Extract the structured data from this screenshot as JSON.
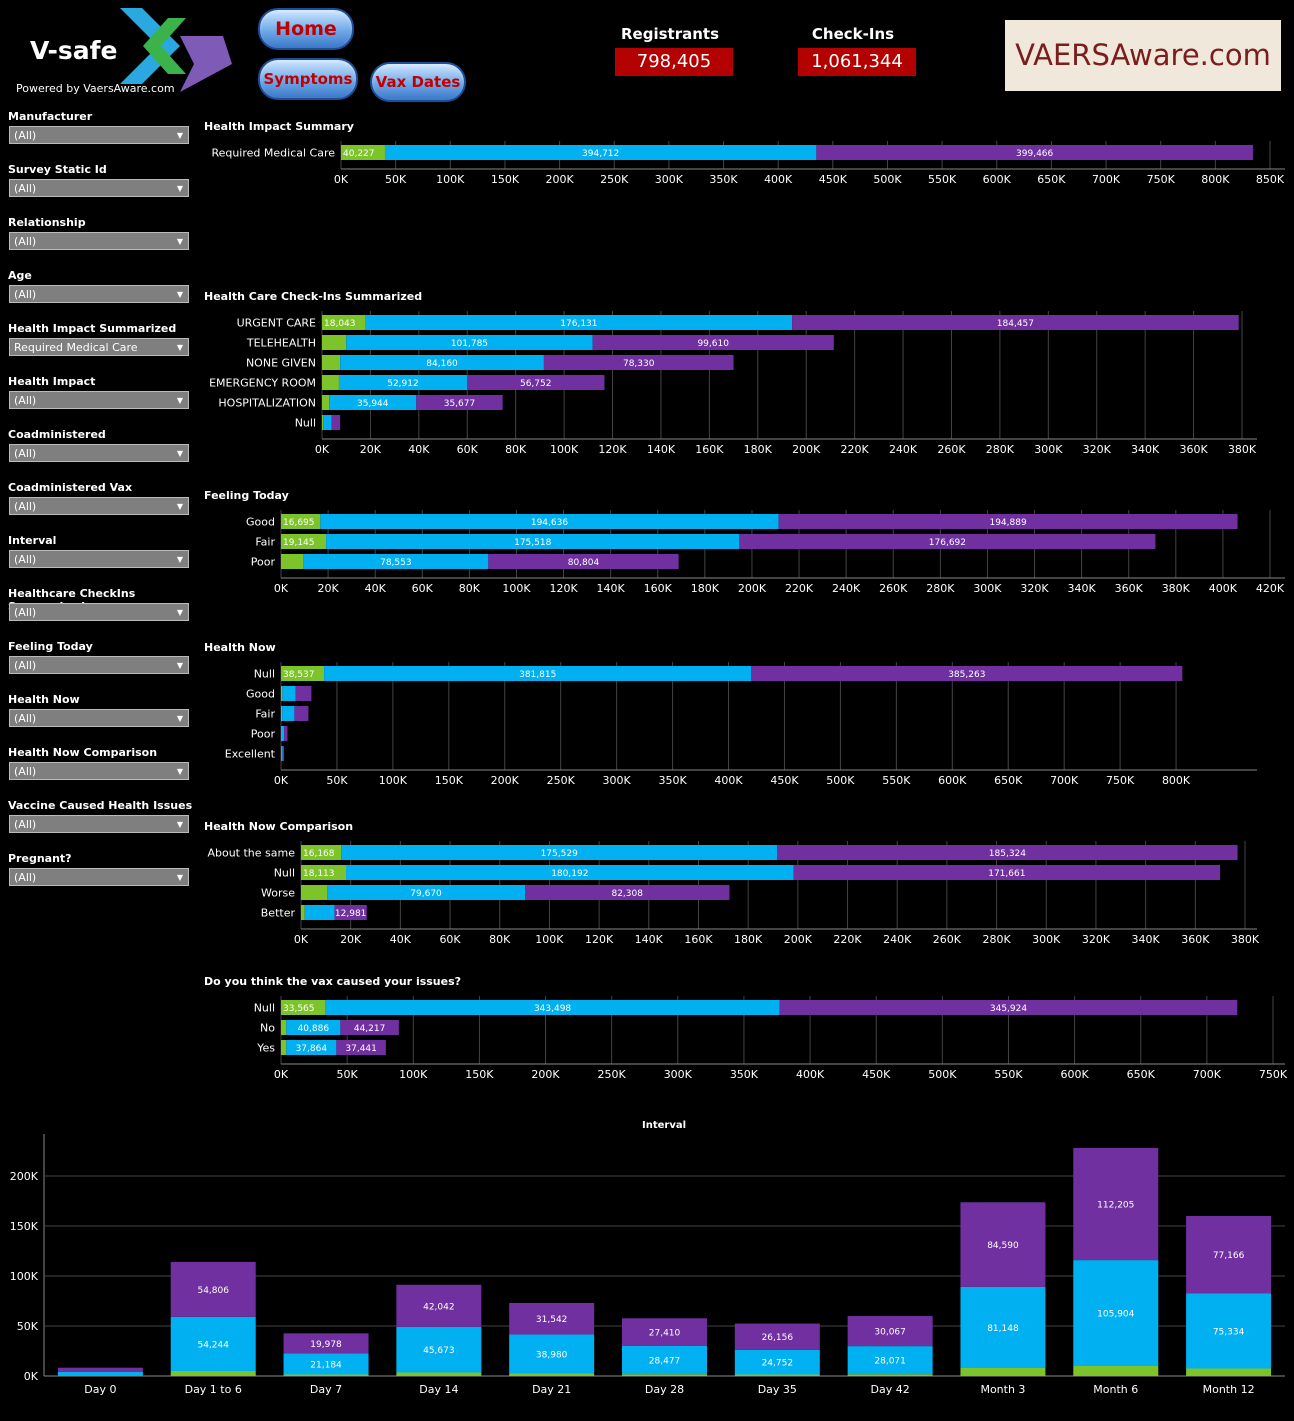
{
  "header": {
    "logo_title": "V-safe",
    "logo_sub": "Powered by VaersAware.com",
    "nav": {
      "home": "Home",
      "symptoms": "Symptoms",
      "vax_dates": "Vax Dates"
    },
    "stats": [
      {
        "label": "Registrants",
        "value": "798,405"
      },
      {
        "label": "Check-Ins",
        "value": "1,061,344"
      }
    ],
    "brand": "VAERSAware.com"
  },
  "filters": [
    {
      "label": "Manufacturer",
      "value": "(All)"
    },
    {
      "label": "Survey Static Id",
      "value": "(All)"
    },
    {
      "label": "Relationship",
      "value": "(All)"
    },
    {
      "label": "Age",
      "value": "(All)"
    },
    {
      "label": "Health Impact Summarized",
      "value": "Required Medical Care"
    },
    {
      "label": "Health Impact",
      "value": "(All)"
    },
    {
      "label": "Coadministered",
      "value": "(All)"
    },
    {
      "label": "Coadministered Vax",
      "value": "(All)"
    },
    {
      "label": "Interval",
      "value": "(All)"
    },
    {
      "label": "Healthcare CheckIns Summarized",
      "value": "(All)"
    },
    {
      "label": "Feeling Today",
      "value": "(All)"
    },
    {
      "label": "Health Now",
      "value": "(All)"
    },
    {
      "label": "Health Now Comparison",
      "value": "(All)"
    },
    {
      "label": "Vaccine Caused Health Issues",
      "value": "(All)"
    },
    {
      "label": "Pregnant?",
      "value": "(All)"
    }
  ],
  "colors": {
    "green": "#7dc32a",
    "blue": "#00b0f0",
    "purple": "#7030a0",
    "grid": "#444444",
    "axis": "#888888"
  },
  "chart_data": [
    {
      "type": "bar",
      "orientation": "horizontal",
      "stacked": true,
      "title": "Health Impact Summary",
      "categories": [
        "Required Medical Care"
      ],
      "series": [
        {
          "values": [
            40227
          ]
        },
        {
          "values": [
            394712
          ]
        },
        {
          "values": [
            399466
          ]
        }
      ],
      "labels": [
        [
          "40,227"
        ],
        [
          "394,712"
        ],
        [
          "399,466"
        ]
      ],
      "xticks": [
        "0K",
        "50K",
        "100K",
        "150K",
        "200K",
        "250K",
        "300K",
        "350K",
        "400K",
        "450K",
        "500K",
        "550K",
        "600K",
        "650K",
        "700K",
        "750K",
        "800K",
        "850K"
      ],
      "xlim": [
        0,
        850000
      ]
    },
    {
      "type": "bar",
      "orientation": "horizontal",
      "stacked": true,
      "title": "Health Care Check-Ins Summarized",
      "categories": [
        "URGENT CARE",
        "TELEHEALTH",
        "NONE GIVEN",
        "EMERGENCY ROOM",
        "HOSPITALIZATION",
        "Null"
      ],
      "series": [
        {
          "values": [
            18043,
            10000,
            7500,
            7000,
            3000,
            500
          ]
        },
        {
          "values": [
            176131,
            101785,
            84160,
            52912,
            35944,
            3500
          ]
        },
        {
          "values": [
            184457,
            99610,
            78330,
            56752,
            35677,
            3500
          ]
        }
      ],
      "labels": [
        [
          "18,043",
          "",
          "",
          "",
          "",
          ""
        ],
        [
          "176,131",
          "101,785",
          "84,160",
          "52,912",
          "35,944",
          ""
        ],
        [
          "184,457",
          "99,610",
          "78,330",
          "56,752",
          "35,677",
          ""
        ]
      ],
      "xticks": [
        "0K",
        "20K",
        "40K",
        "60K",
        "80K",
        "100K",
        "120K",
        "140K",
        "160K",
        "180K",
        "200K",
        "220K",
        "240K",
        "260K",
        "280K",
        "300K",
        "320K",
        "340K",
        "360K",
        "380K"
      ],
      "xlim": [
        0,
        380000
      ]
    },
    {
      "type": "bar",
      "orientation": "horizontal",
      "stacked": true,
      "title": "Feeling Today",
      "categories": [
        "Good",
        "Fair",
        "Poor"
      ],
      "series": [
        {
          "values": [
            16695,
            19145,
            9500
          ]
        },
        {
          "values": [
            194636,
            175518,
            78553
          ]
        },
        {
          "values": [
            194889,
            176692,
            80804
          ]
        }
      ],
      "labels": [
        [
          "16,695",
          "19,145",
          ""
        ],
        [
          "194,636",
          "175,518",
          "78,553"
        ],
        [
          "194,889",
          "176,692",
          "80,804"
        ]
      ],
      "xticks": [
        "0K",
        "20K",
        "40K",
        "60K",
        "80K",
        "100K",
        "120K",
        "140K",
        "160K",
        "180K",
        "200K",
        "220K",
        "240K",
        "260K",
        "280K",
        "300K",
        "320K",
        "340K",
        "360K",
        "380K",
        "400K",
        "420K"
      ],
      "xlim": [
        0,
        420000
      ]
    },
    {
      "type": "bar",
      "orientation": "horizontal",
      "stacked": true,
      "title": "Health Now",
      "categories": [
        "Null",
        "Good",
        "Fair",
        "Poor",
        "Excellent"
      ],
      "series": [
        {
          "values": [
            38537,
            1200,
            1000,
            300,
            200
          ]
        },
        {
          "values": [
            381815,
            12000,
            11000,
            2500,
            1200
          ]
        },
        {
          "values": [
            385263,
            14000,
            12500,
            3000,
            1300
          ]
        }
      ],
      "labels": [
        [
          "38,537",
          "",
          "",
          "",
          ""
        ],
        [
          "381,815",
          "",
          "",
          "",
          ""
        ],
        [
          "385,263",
          "",
          "",
          "",
          ""
        ]
      ],
      "xticks": [
        "0K",
        "50K",
        "100K",
        "150K",
        "200K",
        "250K",
        "300K",
        "350K",
        "400K",
        "450K",
        "500K",
        "550K",
        "600K",
        "650K",
        "700K",
        "750K",
        "800K"
      ],
      "xlim": [
        0,
        850000
      ]
    },
    {
      "type": "bar",
      "orientation": "horizontal",
      "stacked": true,
      "title": "Health Now Comparison",
      "categories": [
        "About the same",
        "Null",
        "Worse",
        "Better"
      ],
      "series": [
        {
          "values": [
            16168,
            18113,
            10500,
            1500
          ]
        },
        {
          "values": [
            175529,
            180192,
            79670,
            12000
          ]
        },
        {
          "values": [
            185324,
            171661,
            82308,
            12981
          ]
        }
      ],
      "labels": [
        [
          "16,168",
          "18,113",
          "",
          ""
        ],
        [
          "175,529",
          "180,192",
          "79,670",
          ""
        ],
        [
          "185,324",
          "171,661",
          "82,308",
          "12,981"
        ]
      ],
      "xticks": [
        "0K",
        "20K",
        "40K",
        "60K",
        "80K",
        "100K",
        "120K",
        "140K",
        "160K",
        "180K",
        "200K",
        "220K",
        "240K",
        "260K",
        "280K",
        "300K",
        "320K",
        "340K",
        "360K",
        "380K"
      ],
      "xlim": [
        0,
        380000
      ]
    },
    {
      "type": "bar",
      "orientation": "horizontal",
      "stacked": true,
      "title": "Do you think the vax caused your issues?",
      "categories": [
        "Null",
        "No",
        "Yes"
      ],
      "series": [
        {
          "values": [
            33565,
            4000,
            4000
          ]
        },
        {
          "values": [
            343498,
            40886,
            37864
          ]
        },
        {
          "values": [
            345924,
            44217,
            37441
          ]
        }
      ],
      "labels": [
        [
          "33,565",
          "",
          ""
        ],
        [
          "343,498",
          "40,886",
          "37,864"
        ],
        [
          "345,924",
          "44,217",
          "37,441"
        ]
      ],
      "xticks": [
        "0K",
        "50K",
        "100K",
        "150K",
        "200K",
        "250K",
        "300K",
        "350K",
        "400K",
        "450K",
        "500K",
        "550K",
        "600K",
        "650K",
        "700K",
        "750K"
      ],
      "xlim": [
        0,
        750000
      ]
    },
    {
      "type": "bar",
      "orientation": "vertical",
      "stacked": true,
      "title": "Interval",
      "categories": [
        "Day 0",
        "Day 1 to 6",
        "Day 7",
        "Day 14",
        "Day 21",
        "Day 28",
        "Day 35",
        "Day 42",
        "Month 3",
        "Month 6",
        "Month 12"
      ],
      "series": [
        {
          "values": [
            800,
            5000,
            1500,
            3500,
            2500,
            1800,
            1500,
            1800,
            8000,
            10000,
            7500
          ]
        },
        {
          "values": [
            3500,
            54244,
            21184,
            45673,
            38980,
            28477,
            24752,
            28071,
            81148,
            105904,
            75334
          ]
        },
        {
          "values": [
            4000,
            54806,
            19978,
            42042,
            31542,
            27410,
            26156,
            30067,
            84590,
            112205,
            77166
          ]
        }
      ],
      "labels": [
        [
          "",
          "",
          "",
          "",
          "",
          "",
          "",
          "",
          "",
          "",
          ""
        ],
        [
          "",
          "54,244",
          "21,184",
          "45,673",
          "38,980",
          "28,477",
          "24,752",
          "28,071",
          "81,148",
          "105,904",
          "75,334"
        ],
        [
          "",
          "54,806",
          "19,978",
          "42,042",
          "31,542",
          "27,410",
          "26,156",
          "30,067",
          "84,590",
          "112,205",
          "77,166"
        ]
      ],
      "yticks": [
        "0K",
        "50K",
        "100K",
        "150K",
        "200K"
      ],
      "ylim": [
        0,
        235000
      ]
    }
  ]
}
